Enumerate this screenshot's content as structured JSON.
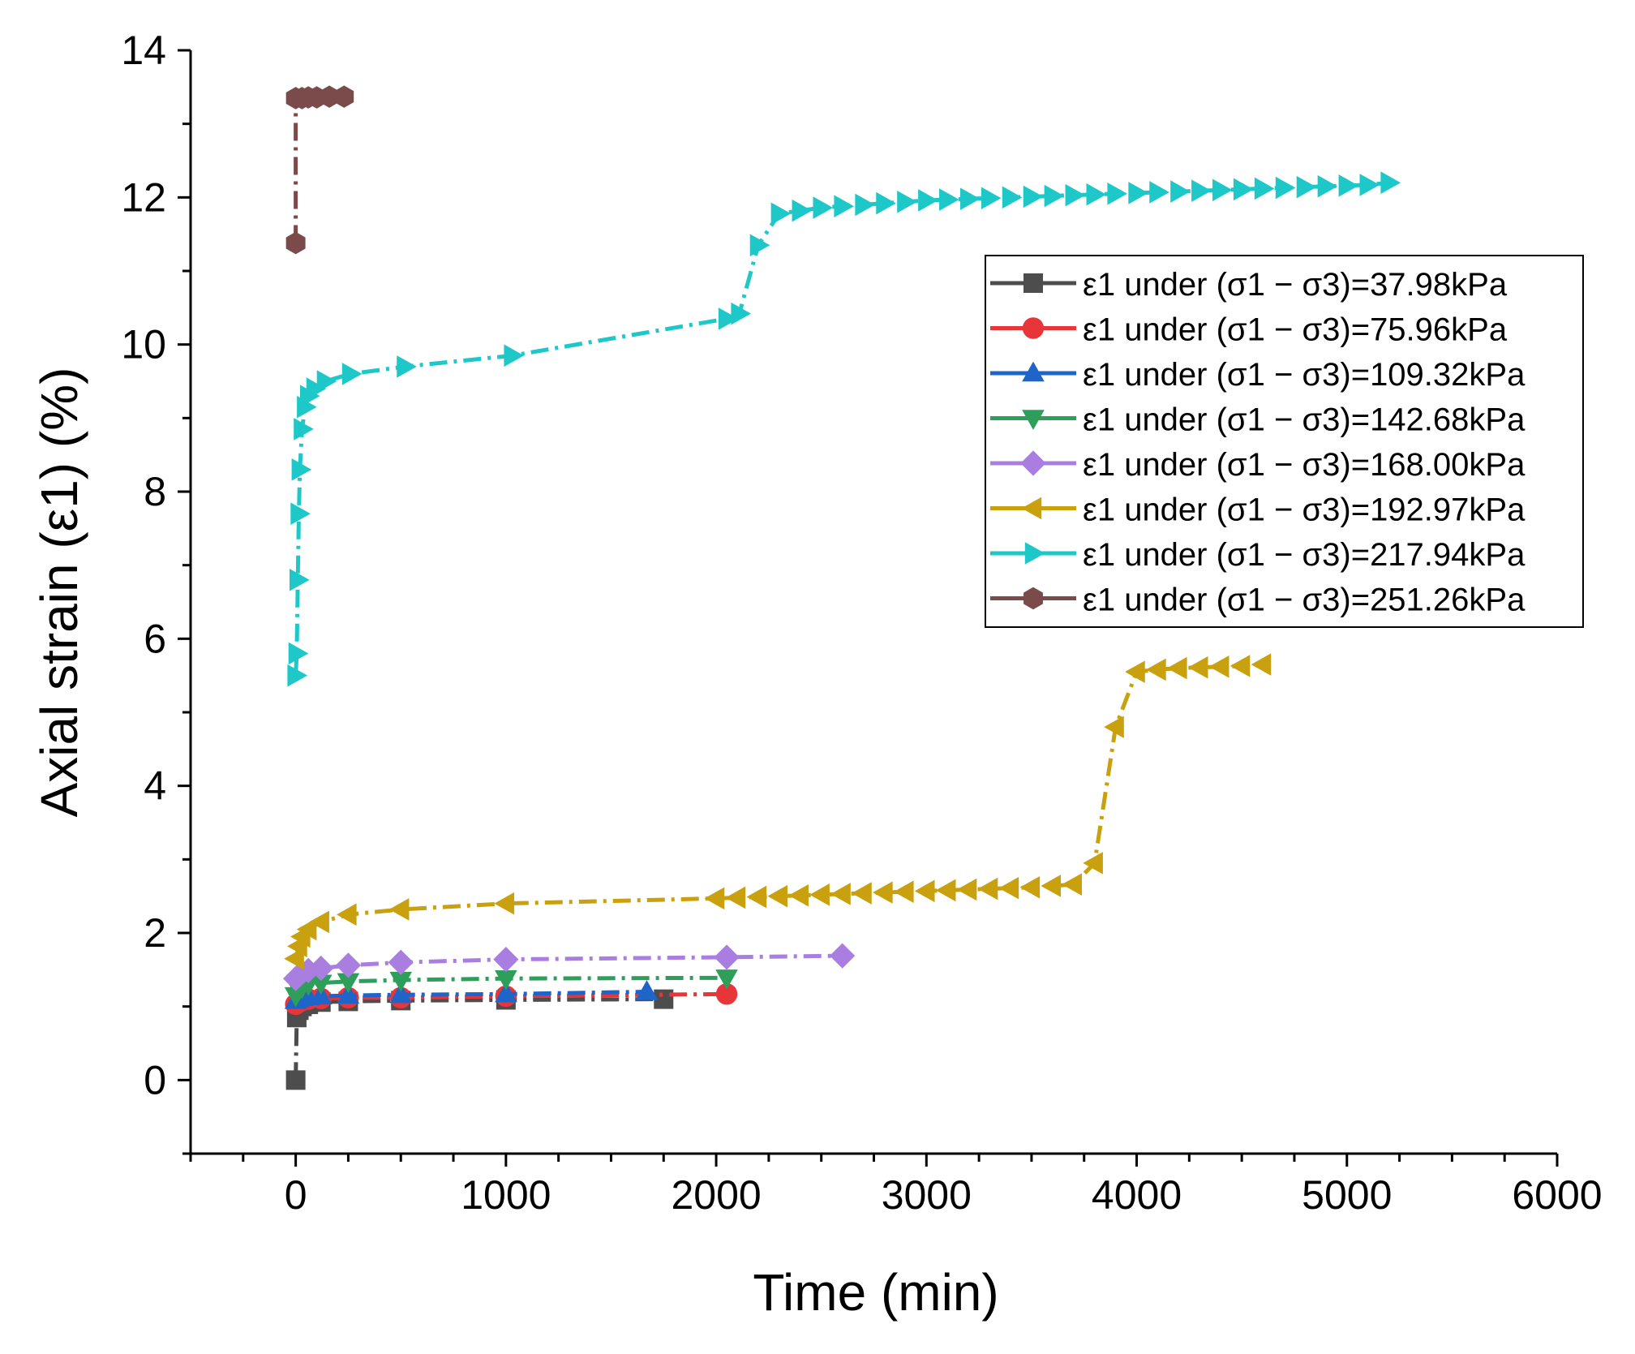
{
  "chart_data": {
    "type": "line",
    "title": "",
    "xlabel": "Time (min)",
    "ylabel": "Axial strain (ε1) (%)",
    "xlim": [
      -500,
      6000
    ],
    "ylim": [
      -1,
      14
    ],
    "xticks": [
      0,
      1000,
      2000,
      3000,
      4000,
      5000,
      6000
    ],
    "xtick_labels": [
      "0",
      "1000",
      "2000",
      "3000",
      "4000",
      "5000",
      "6000"
    ],
    "yticks": [
      0,
      2,
      4,
      6,
      8,
      10,
      12,
      14
    ],
    "ytick_labels": [
      "0",
      "2",
      "4",
      "6",
      "8",
      "10",
      "12",
      "14"
    ],
    "grid": false,
    "legend_position": "upper-right",
    "series": [
      {
        "name": "ε1 under (σ1 − σ3)=37.98kPa",
        "color": "#4d4d4d",
        "marker": "square",
        "x": [
          0,
          5,
          15,
          30,
          60,
          120,
          250,
          500,
          1000,
          1750
        ],
        "y": [
          0.0,
          0.85,
          0.95,
          1.0,
          1.03,
          1.06,
          1.07,
          1.08,
          1.09,
          1.1
        ]
      },
      {
        "name": "ε1 under (σ1 − σ3)=75.96kPa",
        "color": "#e8353a",
        "marker": "circle",
        "x": [
          0,
          15,
          30,
          60,
          120,
          250,
          500,
          1000,
          2050
        ],
        "y": [
          1.03,
          1.06,
          1.08,
          1.1,
          1.11,
          1.12,
          1.12,
          1.14,
          1.17
        ]
      },
      {
        "name": "ε1 under (σ1 − σ3)=109.32kPa",
        "color": "#1f64c8",
        "marker": "triangle-up",
        "x": [
          0,
          15,
          30,
          60,
          120,
          250,
          500,
          1000,
          1670
        ],
        "y": [
          1.08,
          1.1,
          1.12,
          1.13,
          1.14,
          1.15,
          1.16,
          1.17,
          1.2
        ]
      },
      {
        "name": "ε1 under (σ1 − σ3)=142.68kPa",
        "color": "#2e9e5b",
        "marker": "triangle-down",
        "x": [
          0,
          15,
          30,
          60,
          120,
          250,
          500,
          1000,
          2050
        ],
        "y": [
          1.15,
          1.22,
          1.26,
          1.3,
          1.32,
          1.34,
          1.36,
          1.38,
          1.39
        ]
      },
      {
        "name": "ε1 under (σ1 − σ3)=168.00kPa",
        "color": "#a97ee0",
        "marker": "diamond",
        "x": [
          0,
          15,
          30,
          60,
          120,
          250,
          500,
          1000,
          2050,
          2600
        ],
        "y": [
          1.38,
          1.42,
          1.46,
          1.49,
          1.52,
          1.56,
          1.6,
          1.64,
          1.67,
          1.69
        ]
      },
      {
        "name": "ε1 under (σ1 − σ3)=192.97kPa",
        "color": "#c9a00e",
        "marker": "triangle-left",
        "x": [
          0,
          15,
          30,
          60,
          120,
          250,
          500,
          1000,
          2000,
          2100,
          2200,
          2300,
          2400,
          2500,
          2600,
          2700,
          2800,
          2900,
          3000,
          3100,
          3200,
          3300,
          3400,
          3500,
          3600,
          3700,
          3800,
          3900,
          4000,
          4100,
          4200,
          4300,
          4400,
          4500,
          4600
        ],
        "y": [
          1.65,
          1.82,
          1.95,
          2.05,
          2.15,
          2.25,
          2.32,
          2.4,
          2.47,
          2.48,
          2.49,
          2.5,
          2.51,
          2.52,
          2.53,
          2.54,
          2.55,
          2.56,
          2.57,
          2.58,
          2.59,
          2.6,
          2.61,
          2.62,
          2.64,
          2.66,
          2.95,
          4.8,
          5.55,
          5.58,
          5.6,
          5.61,
          5.62,
          5.63,
          5.65
        ]
      },
      {
        "name": "ε1 under (σ1 − σ3)=217.94kPa",
        "color": "#1ec8c8",
        "marker": "triangle-right",
        "x": [
          0,
          5,
          10,
          15,
          20,
          30,
          45,
          60,
          90,
          140,
          260,
          520,
          1030,
          2050,
          2110,
          2200,
          2300,
          2400,
          2500,
          2600,
          2700,
          2800,
          2900,
          3000,
          3100,
          3200,
          3300,
          3400,
          3500,
          3600,
          3700,
          3800,
          3900,
          4000,
          4100,
          4200,
          4300,
          4400,
          4500,
          4600,
          4700,
          4800,
          4900,
          5000,
          5100,
          5200
        ],
        "y": [
          5.5,
          5.8,
          6.8,
          7.7,
          8.3,
          8.85,
          9.15,
          9.3,
          9.4,
          9.5,
          9.6,
          9.7,
          9.85,
          10.35,
          10.42,
          11.35,
          11.78,
          11.82,
          11.86,
          11.88,
          11.9,
          11.92,
          11.94,
          11.96,
          11.97,
          11.98,
          11.99,
          12.0,
          12.01,
          12.02,
          12.03,
          12.04,
          12.05,
          12.06,
          12.07,
          12.08,
          12.09,
          12.1,
          12.11,
          12.12,
          12.13,
          12.14,
          12.15,
          12.16,
          12.17,
          12.2
        ]
      },
      {
        "name": "ε1 under (σ1 − σ3)=251.26kPa",
        "color": "#7b4b4b",
        "marker": "hexagon",
        "x": [
          0,
          0,
          30,
          60,
          100,
          160,
          230
        ],
        "y": [
          11.38,
          13.35,
          13.35,
          13.36,
          13.36,
          13.37,
          13.37
        ]
      }
    ]
  }
}
